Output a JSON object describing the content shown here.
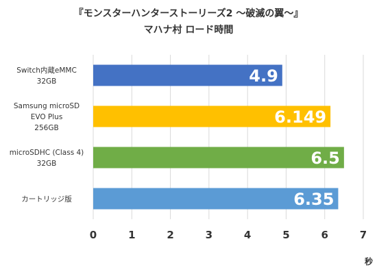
{
  "chart_data": {
    "type": "bar",
    "orientation": "horizontal",
    "title": [
      "『モンスターハンターストーリーズ2 ～破滅の翼～』",
      "マハナ村 ロード時間"
    ],
    "categories": [
      [
        "Switch内蔵eMMC",
        "32GB"
      ],
      [
        "Samsung microSD",
        "EVO Plus",
        "256GB"
      ],
      [
        "microSDHC (Class 4)",
        "32GB"
      ],
      [
        "カートリッジ版"
      ]
    ],
    "values": [
      4.9,
      6.149,
      6.5,
      6.35
    ],
    "data_labels": [
      "4.9",
      "6.149",
      "6.5",
      "6.35"
    ],
    "colors": [
      "#4472c4",
      "#ffc000",
      "#70ad47",
      "#5b9bd5"
    ],
    "xlim": [
      0,
      7
    ],
    "xticks": [
      0,
      1,
      2,
      3,
      4,
      5,
      6,
      7
    ],
    "xlabel": "秒",
    "grid": "vertical",
    "legend": "none"
  }
}
